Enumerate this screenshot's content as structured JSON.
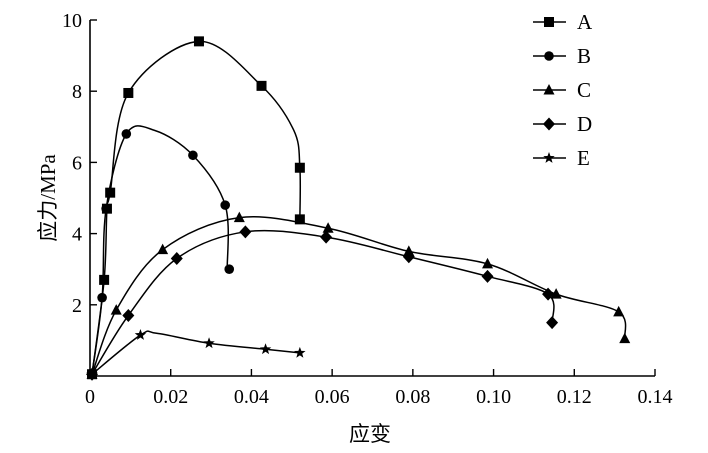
{
  "chart_data": {
    "type": "line",
    "title": "",
    "xlabel": "应变",
    "ylabel": "应力/MPa",
    "xlim": [
      0,
      0.14
    ],
    "ylim": [
      0,
      10
    ],
    "xticks": [
      0,
      0.02,
      0.04,
      0.06,
      0.08,
      0.1,
      0.12,
      0.14
    ],
    "xtick_labels": [
      "0",
      "0.02",
      "0.04",
      "0.06",
      "0.08",
      "0.10",
      "0.12",
      "0.14"
    ],
    "yticks": [
      2,
      4,
      6,
      8,
      10
    ],
    "ytick_labels": [
      "2",
      "4",
      "6",
      "8",
      "10"
    ],
    "grid": false,
    "legend_position": "top-right",
    "series": [
      {
        "name": "A",
        "marker": "square",
        "markers": [
          [
            0.0005,
            0.05
          ],
          [
            0.0035,
            2.7
          ],
          [
            0.0042,
            4.7
          ],
          [
            0.005,
            5.15
          ],
          [
            0.0095,
            7.95
          ],
          [
            0.027,
            9.4
          ],
          [
            0.0425,
            8.15
          ],
          [
            0.052,
            5.85
          ],
          [
            0.052,
            4.4
          ]
        ],
        "curve": [
          [
            0.0005,
            0.05
          ],
          [
            0.0035,
            2.7
          ],
          [
            0.0042,
            4.7
          ],
          [
            0.005,
            5.15
          ],
          [
            0.0095,
            7.95
          ],
          [
            0.027,
            9.4
          ],
          [
            0.0425,
            8.15
          ],
          [
            0.0505,
            6.9
          ],
          [
            0.052,
            5.85
          ],
          [
            0.052,
            4.4
          ]
        ]
      },
      {
        "name": "B",
        "marker": "circle",
        "markers": [
          [
            0.0005,
            0.05
          ],
          [
            0.003,
            2.2
          ],
          [
            0.004,
            4.7
          ],
          [
            0.009,
            6.8
          ],
          [
            0.0255,
            6.2
          ],
          [
            0.0335,
            4.8
          ],
          [
            0.0345,
            3.0
          ]
        ],
        "curve": [
          [
            0.0005,
            0.05
          ],
          [
            0.003,
            2.2
          ],
          [
            0.004,
            4.7
          ],
          [
            0.009,
            6.8
          ],
          [
            0.016,
            6.9
          ],
          [
            0.0255,
            6.2
          ],
          [
            0.0335,
            4.8
          ],
          [
            0.034,
            3.0
          ]
        ]
      },
      {
        "name": "C",
        "marker": "triangle",
        "markers": [
          [
            0.0005,
            0.05
          ],
          [
            0.0065,
            1.85
          ],
          [
            0.018,
            3.55
          ],
          [
            0.037,
            4.45
          ],
          [
            0.059,
            4.15
          ],
          [
            0.079,
            3.5
          ],
          [
            0.0985,
            3.15
          ],
          [
            0.1155,
            2.3
          ],
          [
            0.131,
            1.8
          ],
          [
            0.1325,
            1.05
          ]
        ],
        "curve": [
          [
            0.0005,
            0.05
          ],
          [
            0.0065,
            1.85
          ],
          [
            0.018,
            3.55
          ],
          [
            0.037,
            4.45
          ],
          [
            0.059,
            4.15
          ],
          [
            0.079,
            3.5
          ],
          [
            0.0985,
            3.15
          ],
          [
            0.1155,
            2.3
          ],
          [
            0.131,
            1.8
          ],
          [
            0.1325,
            1.05
          ]
        ]
      },
      {
        "name": "D",
        "marker": "diamond",
        "markers": [
          [
            0.0005,
            0.05
          ],
          [
            0.0095,
            1.7
          ],
          [
            0.0215,
            3.3
          ],
          [
            0.0385,
            4.05
          ],
          [
            0.0585,
            3.9
          ],
          [
            0.079,
            3.35
          ],
          [
            0.0985,
            2.8
          ],
          [
            0.1135,
            2.3
          ],
          [
            0.1145,
            1.5
          ]
        ],
        "curve": [
          [
            0.0005,
            0.05
          ],
          [
            0.0095,
            1.7
          ],
          [
            0.0215,
            3.3
          ],
          [
            0.0385,
            4.05
          ],
          [
            0.0585,
            3.9
          ],
          [
            0.079,
            3.35
          ],
          [
            0.0985,
            2.8
          ],
          [
            0.1135,
            2.3
          ],
          [
            0.1145,
            1.5
          ]
        ]
      },
      {
        "name": "E",
        "marker": "star",
        "markers": [
          [
            0.0005,
            0.05
          ],
          [
            0.0125,
            1.15
          ],
          [
            0.0295,
            0.92
          ],
          [
            0.0435,
            0.75
          ],
          [
            0.052,
            0.65
          ]
        ],
        "curve": [
          [
            0.0005,
            0.05
          ],
          [
            0.0125,
            1.15
          ],
          [
            0.0165,
            1.2
          ],
          [
            0.0295,
            0.92
          ],
          [
            0.0435,
            0.75
          ],
          [
            0.052,
            0.65
          ]
        ]
      }
    ]
  }
}
